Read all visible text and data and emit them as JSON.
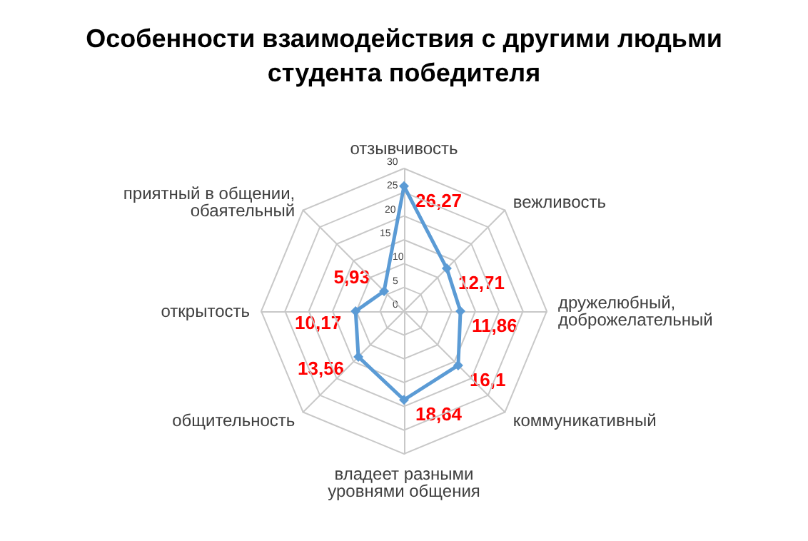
{
  "chart_data": {
    "type": "radar",
    "title": "Особенности взаимодействия с другими людьми\nстудента победителя",
    "categories": [
      "отзывчивость",
      "вежливость",
      "дружелюбный,\nдоброжелательный",
      "коммуникативный",
      "владеет разными\nуровнями общения",
      "общительность",
      "открытость",
      "приятный в общении,\nобаятельный"
    ],
    "series": [
      {
        "color": "#5b9bd5",
        "values": [
          26.27,
          12.71,
          11.86,
          16.1,
          18.64,
          13.56,
          10.17,
          5.93
        ],
        "value_labels": [
          "26,27",
          "12,71",
          "11,86",
          "16,1",
          "18,64",
          "13,56",
          "10,17",
          "5,93"
        ]
      }
    ],
    "ylim": [
      0,
      30
    ],
    "yticks": [
      0,
      5,
      10,
      15,
      20,
      25,
      30
    ],
    "marker": "diamond",
    "grid": true
  }
}
